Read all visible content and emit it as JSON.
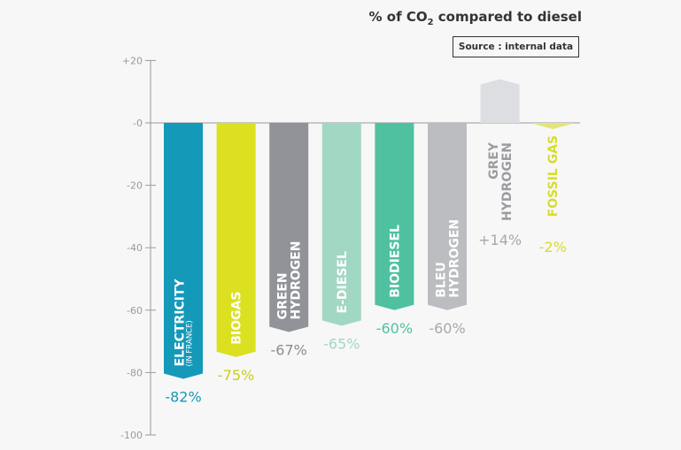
{
  "chart_data": {
    "type": "bar",
    "title_prefix": "% of CO",
    "title_subscript": "2",
    "title_suffix": " compared to diesel",
    "source": "Source : internal data",
    "yticks": [
      "+20",
      "-0",
      "-20",
      "-40",
      "-60",
      "-80",
      "-100"
    ],
    "ylim": [
      -100,
      20
    ],
    "categories": [
      {
        "lines": [
          "ELECTRICITY"
        ],
        "sub": "(IN FRANCE)",
        "value": -82,
        "label": "-82%",
        "color": "#1499b9",
        "text_color": "#ffffff",
        "value_color": "#1499b9"
      },
      {
        "lines": [
          "BIOGAS"
        ],
        "value": -75,
        "label": "-75%",
        "color": "#dbe020",
        "text_color": "#ffffff",
        "value_color": "#c9cf1a"
      },
      {
        "lines": [
          "GREEN",
          "HYDROGEN"
        ],
        "value": -67,
        "label": "-67%",
        "color": "#919398",
        "text_color": "#ffffff",
        "value_color": "#8a8c91"
      },
      {
        "lines": [
          "E-DIESEL"
        ],
        "value": -65,
        "label": "-65%",
        "color": "#a2d7c4",
        "text_color": "#ffffff",
        "value_color": "#a2d7c4"
      },
      {
        "lines": [
          "BIODIESEL"
        ],
        "value": -60,
        "label": "-60%",
        "color": "#4fc1a1",
        "text_color": "#ffffff",
        "value_color": "#4fc1a1"
      },
      {
        "lines": [
          "BLEU",
          "HYDROGEN"
        ],
        "value": -60,
        "label": "-60%",
        "color": "#bcbdc1",
        "text_color": "#ffffff",
        "value_color": "#a6a8ac"
      },
      {
        "lines": [
          "GREY",
          "HYDROGEN"
        ],
        "value": 14,
        "label": "+14%",
        "color": "#dcdee1",
        "text_color": "#9a9ca0",
        "value_color": "#a6a8ac"
      },
      {
        "lines": [
          "FOSSIL GAS"
        ],
        "value": -2,
        "label": "-2%",
        "color": "#e2e67a",
        "text_color": "#d7dc2c",
        "value_color": "#d7dc2c"
      }
    ]
  }
}
